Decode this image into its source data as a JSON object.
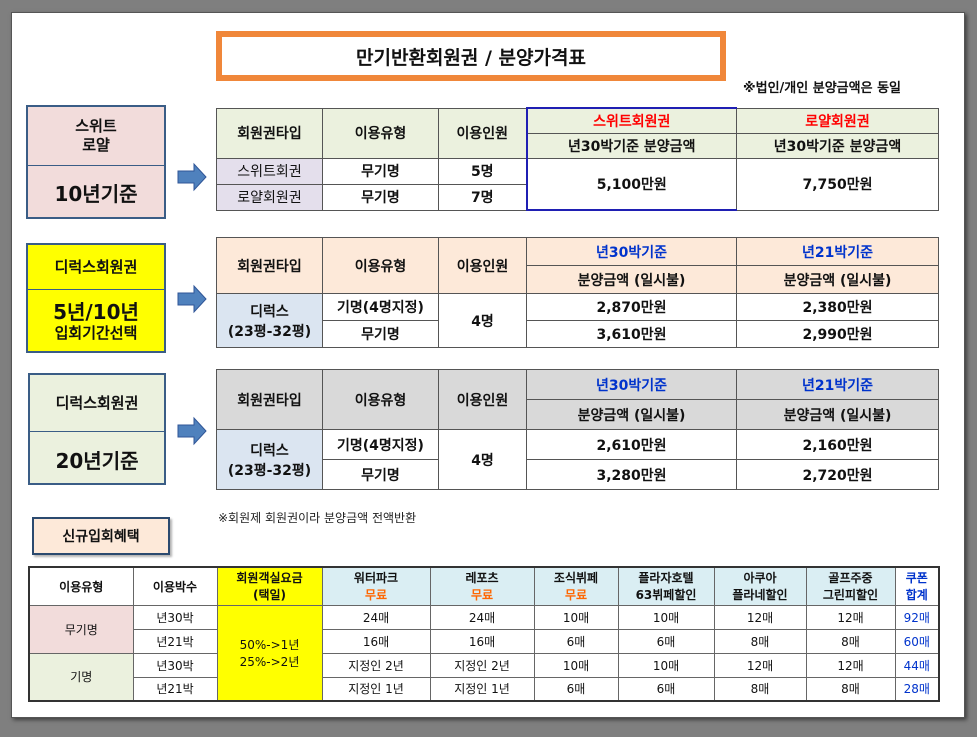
{
  "title": "만기반환회원권 / 분양가격표",
  "note_top": "※법인/개인 분양금액은 동일",
  "note_mid": "※회원제 회원권이라 분양금액 전액반환",
  "colors": {
    "title_border": "#f0873a",
    "accent_red": "#ff0000",
    "accent_blue": "#0033cc",
    "yellow": "#ffff00"
  },
  "section1": {
    "box": {
      "line1": "스위트",
      "line2": "로얄",
      "bottom": "10년기준"
    },
    "headers": {
      "type": "회원권타입",
      "usage": "이용유형",
      "people": "이용인원",
      "col1_title": "스위트회원권",
      "col2_title": "로얄회원권",
      "col1_sub": "년30박기준 분양금액",
      "col2_sub": "년30박기준 분양금액"
    },
    "rows": [
      {
        "type": "스위트회권",
        "usage": "무기명",
        "people": "5명"
      },
      {
        "type": "로얄회원권",
        "usage": "무기명",
        "people": "7명"
      }
    ],
    "price1": "5,100만원",
    "price2": "7,750만원"
  },
  "section2": {
    "box": {
      "top": "디럭스회원권",
      "bottom1": "5년/10년",
      "bottom2": "입회기간선택"
    },
    "headers": {
      "type": "회원권타입",
      "usage": "이용유형",
      "people": "이용인원",
      "col1_title": "년30박기준",
      "col2_title": "년21박기준",
      "col1_sub": "분양금액 (일시불)",
      "col2_sub": "분양금액 (일시불)"
    },
    "type_line1": "디럭스",
    "type_line2": "(23평-32평)",
    "people": "4명",
    "rows": [
      {
        "usage": "기명(4명지정)",
        "p30": "2,870만원",
        "p21": "2,380만원"
      },
      {
        "usage": "무기명",
        "p30": "3,610만원",
        "p21": "2,990만원"
      }
    ]
  },
  "section3": {
    "box": {
      "top": "디럭스회원권",
      "bottom": "20년기준"
    },
    "headers": {
      "type": "회원권타입",
      "usage": "이용유형",
      "people": "이용인원",
      "col1_title": "년30박기준",
      "col2_title": "년21박기준",
      "col1_sub": "분양금액 (일시불)",
      "col2_sub": "분양금액 (일시불)"
    },
    "type_line1": "디럭스",
    "type_line2": "(23평-32평)",
    "people": "4명",
    "rows": [
      {
        "usage": "기명(4명지정)",
        "p30": "2,610만원",
        "p21": "2,160만원"
      },
      {
        "usage": "무기명",
        "p30": "3,280만원",
        "p21": "2,720만원"
      }
    ]
  },
  "benefit_label": "신규입회혜택",
  "benefits": {
    "headers": {
      "usage": "이용유형",
      "nights": "이용박수",
      "room_l1": "회원객실요금",
      "room_l2": "(택일)",
      "water_l1": "워터파크",
      "water_l2": "무료",
      "leports_l1": "레포츠",
      "leports_l2": "무료",
      "buffet_l1": "조식뷔페",
      "buffet_l2": "무료",
      "plaza_l1": "플라자호텔",
      "plaza_l2": "63뷔페할인",
      "aqua_l1": "아쿠아",
      "aqua_l2": "플라네할인",
      "golf_l1": "골프주중",
      "golf_l2": "그린피할인",
      "coupon_l1": "쿠폰",
      "coupon_l2": "합계"
    },
    "discount_l1": "50%->1년",
    "discount_l2": "25%->2년",
    "groups": [
      "무기명",
      "기명"
    ],
    "rows": [
      {
        "nights": "년30박",
        "water": "24매",
        "leports": "24매",
        "buffet": "10매",
        "plaza": "10매",
        "aqua": "12매",
        "golf": "12매",
        "total": "92매"
      },
      {
        "nights": "년21박",
        "water": "16매",
        "leports": "16매",
        "buffet": "6매",
        "plaza": "6매",
        "aqua": "8매",
        "golf": "8매",
        "total": "60매"
      },
      {
        "nights": "년30박",
        "water": "지정인 2년",
        "leports": "지정인 2년",
        "buffet": "10매",
        "plaza": "10매",
        "aqua": "12매",
        "golf": "12매",
        "total": "44매"
      },
      {
        "nights": "년21박",
        "water": "지정인 1년",
        "leports": "지정인 1년",
        "buffet": "6매",
        "plaza": "6매",
        "aqua": "8매",
        "golf": "8매",
        "total": "28매"
      }
    ]
  }
}
